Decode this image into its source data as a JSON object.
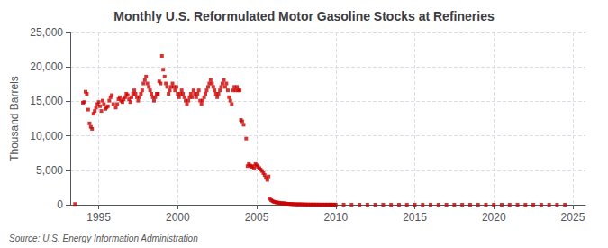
{
  "chart_data": {
    "type": "scatter",
    "title": "Monthly U.S. Reformulated Motor Gasoline Stocks at Refineries",
    "ylabel": "Thousand Barrels",
    "source": "Source: U.S. Energy Information Administration",
    "color": "#cc0000",
    "marker": "square",
    "grid": true,
    "xlim": [
      1993.2,
      2025.8
    ],
    "xticks": [
      1995,
      2000,
      2005,
      2010,
      2015,
      2020,
      2025
    ],
    "ylim": [
      0,
      25000
    ],
    "yticks": [
      0,
      {
        "value": 5000,
        "label": "5,000"
      },
      {
        "value": 10000,
        "label": "10,000"
      },
      {
        "value": 15000,
        "label": "15,000"
      },
      {
        "value": 20000,
        "label": "20,000"
      },
      {
        "value": 25000,
        "label": "25,000"
      }
    ],
    "x": [
      1993.5,
      1994,
      1994.08,
      1994.17,
      1994.25,
      1994.33,
      1994.42,
      1994.5,
      1994.58,
      1994.67,
      1994.75,
      1994.83,
      1994.92,
      1995,
      1995.08,
      1995.17,
      1995.25,
      1995.33,
      1995.42,
      1995.5,
      1995.58,
      1995.67,
      1995.75,
      1995.83,
      1995.92,
      1996.08,
      1996.17,
      1996.25,
      1996.33,
      1996.42,
      1996.5,
      1996.58,
      1996.67,
      1996.75,
      1996.83,
      1996.92,
      1997,
      1997.08,
      1997.17,
      1997.25,
      1997.33,
      1997.42,
      1997.5,
      1997.58,
      1997.67,
      1997.75,
      1997.83,
      1997.92,
      1998,
      1998.08,
      1998.17,
      1998.25,
      1998.33,
      1998.42,
      1998.5,
      1998.58,
      1998.67,
      1998.75,
      1998.83,
      1998.92,
      1999,
      1999.08,
      1999.17,
      1999.25,
      1999.33,
      1999.42,
      1999.5,
      1999.58,
      1999.67,
      1999.75,
      1999.83,
      1999.92,
      2000,
      2000.08,
      2000.17,
      2000.25,
      2000.33,
      2000.42,
      2000.5,
      2000.58,
      2000.67,
      2000.75,
      2000.83,
      2000.92,
      2001,
      2001.08,
      2001.17,
      2001.25,
      2001.33,
      2001.42,
      2001.5,
      2001.58,
      2001.67,
      2001.75,
      2001.83,
      2001.92,
      2002,
      2002.08,
      2002.17,
      2002.25,
      2002.33,
      2002.42,
      2002.5,
      2002.58,
      2002.67,
      2002.75,
      2002.83,
      2002.92,
      2003,
      2003.08,
      2003.17,
      2003.25,
      2003.33,
      2003.42,
      2003.5,
      2003.58,
      2003.67,
      2003.75,
      2003.83,
      2003.92,
      2004,
      2004.08,
      2004.17,
      2004.33,
      2004.42,
      2004.5,
      2004.58,
      2004.67,
      2004.75,
      2004.83,
      2004.92,
      2005,
      2005.08,
      2005.17,
      2005.25,
      2005.33,
      2005.42,
      2005.5,
      2005.58,
      2005.67,
      2005.75,
      2005.83,
      2005.92,
      2006,
      2006.08,
      2006.17,
      2006.25,
      2006.33,
      2006.42,
      2006.5,
      2006.58,
      2006.67,
      2006.75,
      2006.83,
      2006.92,
      2007,
      2007.08,
      2007.17,
      2007.25,
      2007.33,
      2007.42,
      2007.5,
      2007.58,
      2007.67,
      2007.75,
      2007.83,
      2007.92,
      2008,
      2008.08,
      2008.17,
      2008.25,
      2008.33,
      2008.42,
      2008.5,
      2008.58,
      2008.67,
      2008.75,
      2008.83,
      2008.92,
      2009,
      2009.08,
      2009.17,
      2009.25,
      2009.33,
      2009.42,
      2009.5,
      2009.58,
      2009.67,
      2009.75,
      2009.83,
      2009.92,
      2010,
      2010.5,
      2011,
      2011.5,
      2012,
      2012.5,
      2013,
      2013.5,
      2014,
      2014.5,
      2015,
      2015.5,
      2016,
      2016.5,
      2017,
      2017.5,
      2018,
      2018.5,
      2019,
      2019.5,
      2020,
      2020.5,
      2021,
      2021.5,
      2022,
      2022.5,
      2023,
      2023.5,
      2024,
      2024.5
    ],
    "values": [
      100,
      14800,
      14900,
      16400,
      16100,
      13800,
      11800,
      11300,
      11000,
      13200,
      13600,
      14100,
      14600,
      14900,
      14300,
      13600,
      15100,
      14600,
      13900,
      14100,
      14300,
      15100,
      15600,
      15900,
      14600,
      14100,
      14600,
      15300,
      15600,
      15100,
      14900,
      15300,
      15600,
      16100,
      15900,
      15300,
      14900,
      15600,
      16100,
      16600,
      16100,
      15600,
      15100,
      15600,
      16100,
      16600,
      17600,
      18100,
      18600,
      17600,
      17100,
      16600,
      16100,
      15600,
      15100,
      15600,
      16100,
      16100,
      17900,
      17600,
      21600,
      19600,
      18600,
      17600,
      17100,
      16100,
      16600,
      17100,
      17600,
      17100,
      16600,
      17100,
      16100,
      15600,
      16100,
      16600,
      16100,
      15600,
      15100,
      14600,
      15100,
      15600,
      16100,
      15600,
      16600,
      16100,
      15600,
      16100,
      16600,
      15100,
      14600,
      15100,
      15600,
      16100,
      16600,
      17100,
      17600,
      18100,
      17600,
      17100,
      16600,
      16100,
      15600,
      16100,
      16600,
      17100,
      17600,
      18100,
      17100,
      17600,
      16600,
      15600,
      15100,
      14600,
      16600,
      17100,
      16600,
      17100,
      16600,
      16600,
      12300,
      12100,
      11600,
      9600,
      5600,
      5900,
      5700,
      5500,
      5600,
      5300,
      5900,
      5700,
      5500,
      5300,
      5100,
      4900,
      4600,
      4300,
      3900,
      3600,
      4100,
      850,
      650,
      520,
      420,
      370,
      320,
      310,
      270,
      220,
      210,
      210,
      190,
      160,
      140,
      130,
      110,
      100,
      90,
      80,
      70,
      60,
      55,
      55,
      55,
      45,
      45,
      35,
      32,
      28,
      27,
      22,
      22,
      22,
      22,
      22,
      18,
      18,
      18,
      12,
      12,
      12,
      12,
      12,
      12,
      12,
      12,
      12,
      12,
      10,
      10,
      7,
      6,
      5,
      4,
      3,
      3,
      3,
      3,
      2,
      2,
      2,
      2,
      2,
      2,
      2,
      2,
      2,
      2,
      2,
      2,
      2,
      2,
      2,
      2,
      2,
      2,
      2,
      2,
      2,
      2
    ]
  }
}
